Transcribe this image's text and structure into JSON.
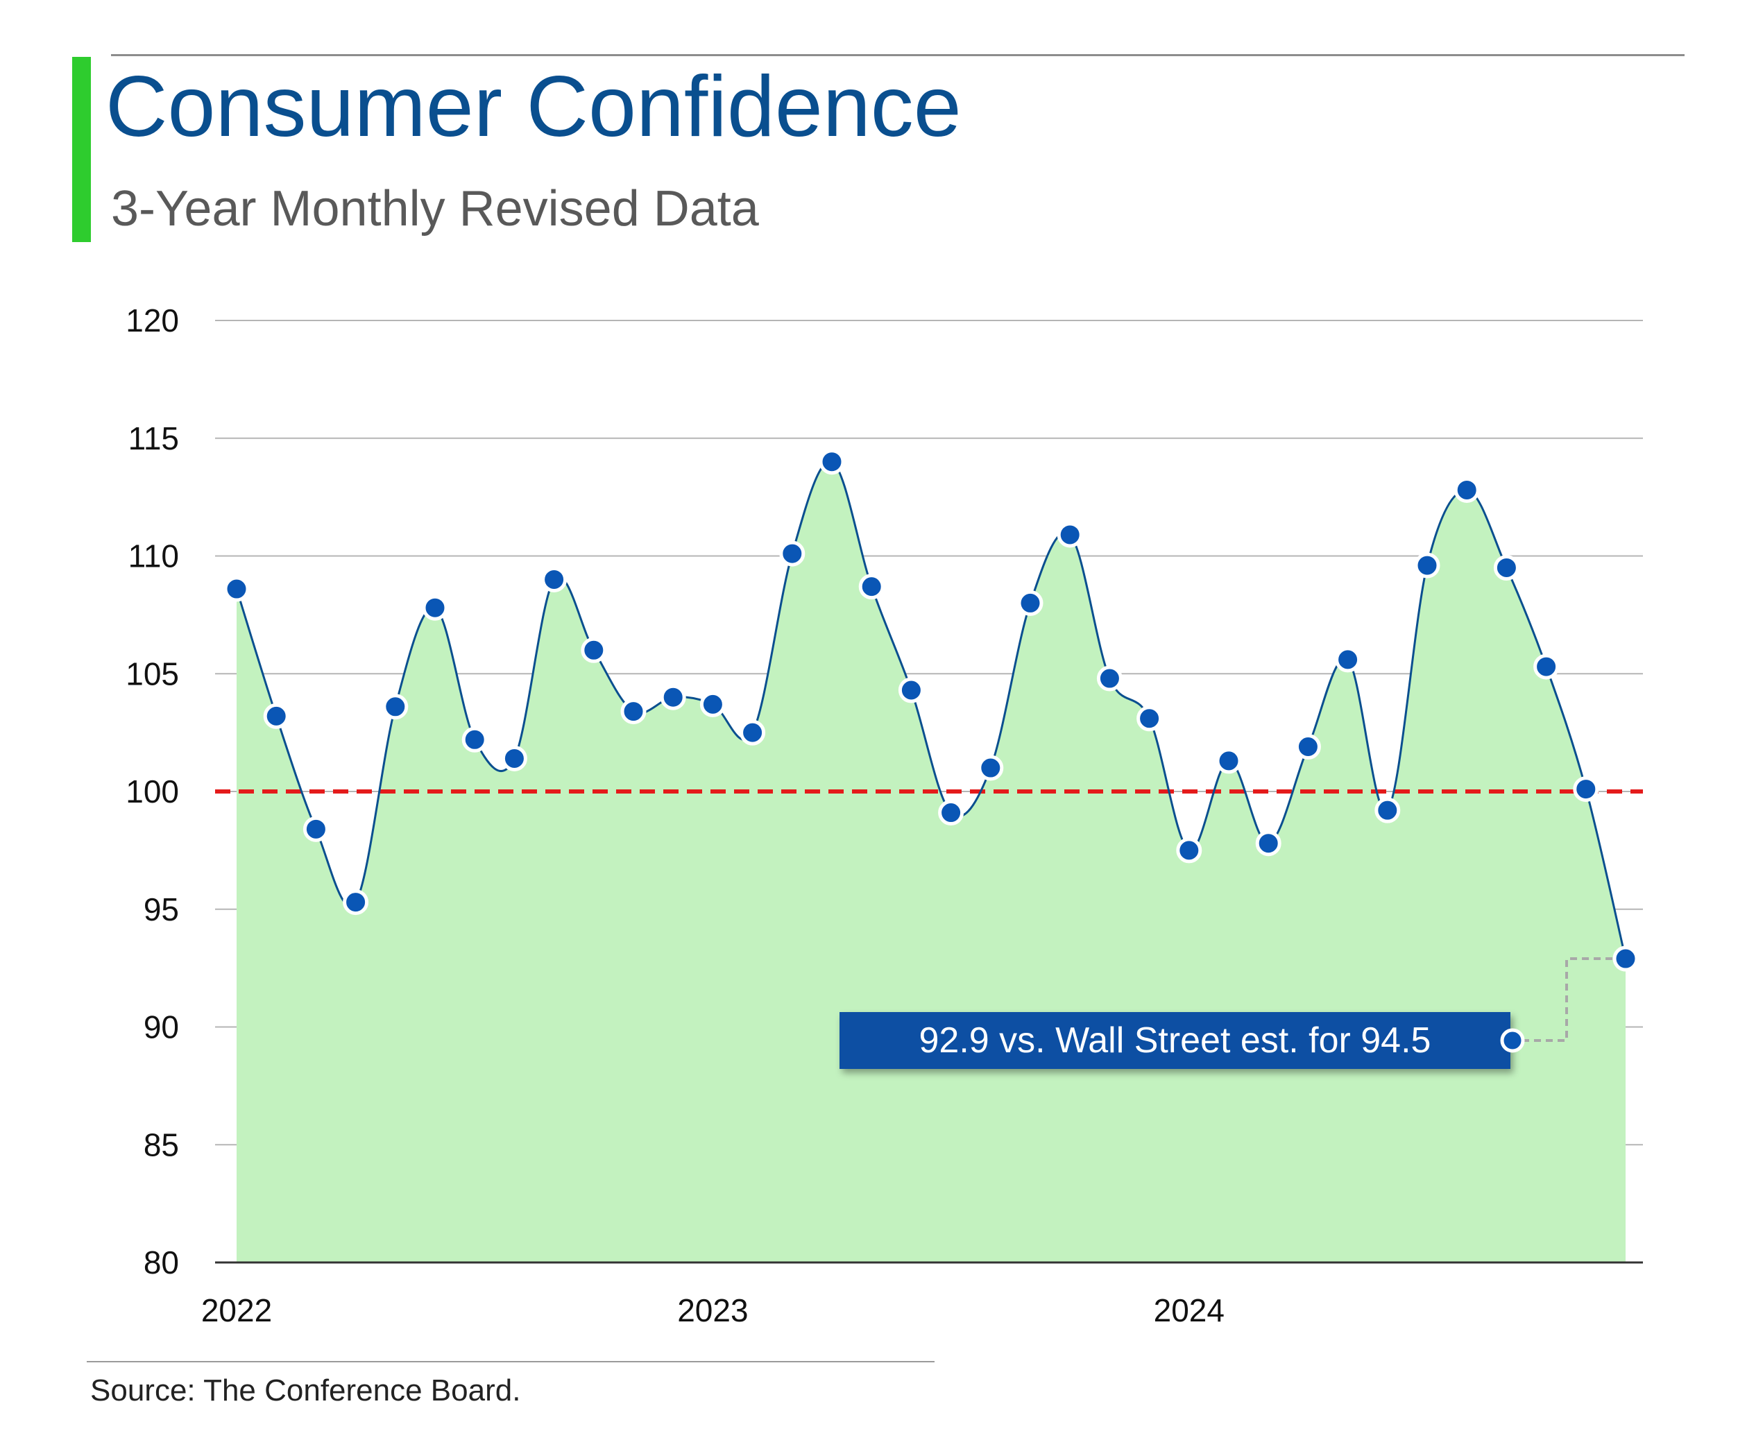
{
  "header": {
    "title": "Consumer Confidence",
    "subtitle": "3-Year Monthly Revised Data",
    "accent_color": "#2ecc2e",
    "title_color": "#0a4f8f"
  },
  "chart_data": {
    "type": "area",
    "title": "Consumer Confidence",
    "subtitle": "3-Year Monthly Revised Data",
    "x_tick_labels": [
      "2022",
      "2023",
      "2024"
    ],
    "y_ticks": [
      80,
      85,
      90,
      95,
      100,
      105,
      110,
      115,
      120
    ],
    "ylim": [
      80,
      120
    ],
    "grid": "horizontal",
    "series": [
      {
        "values": [
          108.6,
          103.2,
          98.4,
          95.3,
          103.6,
          107.8,
          102.2,
          101.4,
          109.0,
          106.0,
          103.4,
          104.0,
          103.7,
          102.5,
          110.1,
          114.0,
          108.7,
          104.3,
          99.1,
          101.0,
          108.0,
          110.9,
          104.8,
          103.1,
          97.5,
          101.3,
          97.8,
          101.9,
          105.6,
          99.2,
          109.6,
          112.8,
          109.5,
          105.3,
          100.1,
          92.9
        ],
        "line_color": "#0a4f8f",
        "fill_color": "#c3f2bf",
        "marker_color": "#0a56b5"
      }
    ],
    "reference_line": {
      "value": 100,
      "color": "#e41b1b",
      "style": "dashed"
    },
    "annotation": {
      "text": "92.9 vs. Wall Street est. for 94.5",
      "target_index": 35,
      "box_color": "#0a4fa3",
      "text_color": "#ffffff"
    }
  },
  "footer": {
    "source": "Source: The Conference Board."
  }
}
